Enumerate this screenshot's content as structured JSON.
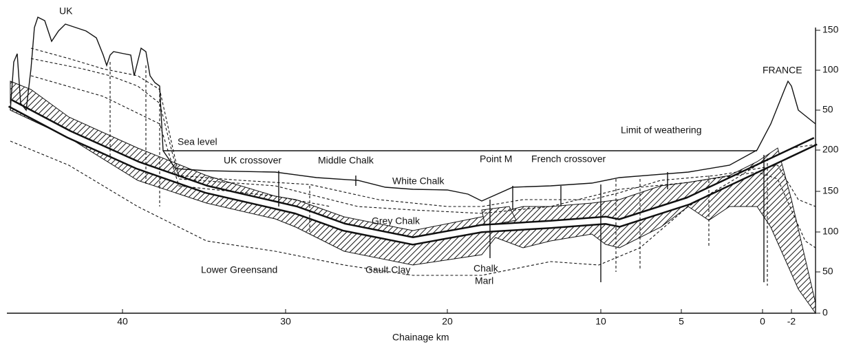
{
  "labels": {
    "uk": "UK",
    "france": "FRANCE",
    "sea_level": "Sea level",
    "uk_crossover": "UK crossover",
    "middle_chalk": "Middle Chalk",
    "white_chalk": "White Chalk",
    "point_m": "Point M",
    "french_crossover": "French crossover",
    "limit_of_weathering": "Limit of weathering",
    "grey_chalk": "Grey Chalk",
    "lower_greensand": "Lower Greensand",
    "gault_clay": "Gault Clay",
    "chalk_marl": [
      "Chalk",
      "Marl"
    ]
  },
  "x_axis": {
    "label": "Chainage km",
    "ticks": [
      40,
      30,
      20,
      10,
      5,
      0,
      -2
    ]
  },
  "right_axis": {
    "upper_ticks": [
      150,
      100,
      50
    ],
    "lower_ticks": [
      200,
      150,
      100,
      50,
      0
    ]
  }
}
